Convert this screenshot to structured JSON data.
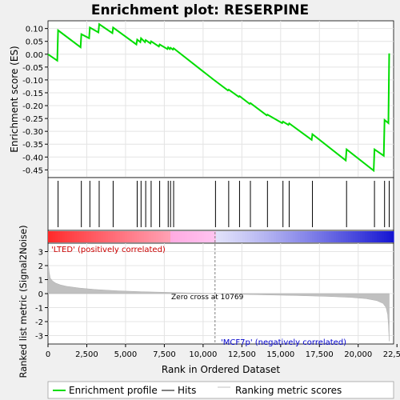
{
  "title": "Enrichment plot: RESERPINE",
  "legend": {
    "items": [
      {
        "label": "Enrichment profile",
        "color": "#00dd00"
      },
      {
        "label": "Hits",
        "color": "#000000"
      },
      {
        "label": "Ranking metric scores",
        "color": "#c0c0c0"
      }
    ]
  },
  "annotations": {
    "positive_label": "'LTED' (positively correlated)",
    "negative_label": "'MCF7p' (negatively correlated)",
    "zero_cross": "Zero cross at 10769",
    "positive_color": "#cc0000",
    "negative_color": "#0000cc"
  },
  "chart_data": [
    {
      "type": "line",
      "name": "enrichment-profile",
      "ylabel": "Enrichment score (ES)",
      "ylim": [
        -0.48,
        0.13
      ],
      "yticks": [
        0.1,
        0.05,
        0.0,
        -0.05,
        -0.1,
        -0.15,
        -0.2,
        -0.25,
        -0.3,
        -0.35,
        -0.4,
        -0.45
      ],
      "ytick_labels": [
        "0.10",
        "0.05",
        "0.00",
        "-0.05",
        "-0.10",
        "-0.15",
        "-0.20",
        "-0.25",
        "-0.30",
        "-0.35",
        "-0.40",
        "-0.45"
      ],
      "xlim": [
        0,
        22283
      ],
      "grid": true,
      "line_color": "#00dd00",
      "x": [
        0,
        600,
        650,
        2100,
        2150,
        2650,
        2700,
        3250,
        3300,
        4150,
        4200,
        5700,
        5750,
        5950,
        6000,
        6250,
        6300,
        6600,
        6650,
        7150,
        7200,
        7700,
        7750,
        7850,
        7900,
        8050,
        8100,
        10700,
        11600,
        11650,
        12300,
        12350,
        13000,
        13050,
        14100,
        14150,
        15100,
        15150,
        15500,
        15550,
        17000,
        17050,
        19200,
        19250,
        21000,
        21050,
        21650,
        21700,
        21950,
        22000
      ],
      "y": [
        0.0,
        -0.025,
        0.093,
        0.027,
        0.078,
        0.062,
        0.104,
        0.085,
        0.117,
        0.082,
        0.104,
        0.038,
        0.057,
        0.047,
        0.062,
        0.047,
        0.055,
        0.042,
        0.05,
        0.03,
        0.038,
        0.02,
        0.027,
        0.02,
        0.025,
        0.018,
        0.023,
        -0.1,
        -0.141,
        -0.138,
        -0.166,
        -0.163,
        -0.193,
        -0.19,
        -0.238,
        -0.235,
        -0.268,
        -0.262,
        -0.275,
        -0.269,
        -0.333,
        -0.311,
        -0.413,
        -0.37,
        -0.453,
        -0.37,
        -0.395,
        -0.256,
        -0.268,
        0.003
      ]
    },
    {
      "type": "scatter",
      "name": "hits",
      "x": [
        650,
        2150,
        2700,
        3300,
        4200,
        5750,
        6000,
        6300,
        6650,
        7200,
        7750,
        7900,
        8100,
        10800,
        11650,
        12350,
        13050,
        14150,
        15150,
        15550,
        17050,
        19250,
        21050,
        21700,
        22000
      ]
    },
    {
      "type": "area",
      "name": "ranking-metric",
      "ylabel": "Ranked list metric (Signal2Noise)",
      "xlabel": "Rank in Ordered Dataset",
      "ylim": [
        -3.6,
        3.6
      ],
      "yticks": [
        3,
        2,
        1,
        0,
        -1,
        -2,
        -3
      ],
      "ytick_labels": [
        "3",
        "2",
        "1",
        "0",
        "-1",
        "-2",
        "-3"
      ],
      "xlim": [
        0,
        22283
      ],
      "xticks": [
        0,
        2500,
        5000,
        7500,
        10000,
        12500,
        15000,
        17500,
        20000,
        22500
      ],
      "xtick_labels": [
        "0",
        "2,500",
        "5,000",
        "7,500",
        "10,000",
        "12,500",
        "15,000",
        "17,500",
        "20,000",
        "22,500"
      ],
      "zero_cross": 10769,
      "fill_color": "#c0c0c0",
      "x": [
        0,
        30,
        80,
        150,
        300,
        500,
        800,
        1200,
        2000,
        3000,
        4500,
        6000,
        8000,
        10000,
        10769,
        12000,
        14000,
        16000,
        18000,
        19500,
        20500,
        21200,
        21600,
        21800,
        21900,
        21950,
        22000
      ],
      "y": [
        3.0,
        2.0,
        1.5,
        1.1,
        0.9,
        0.75,
        0.62,
        0.52,
        0.4,
        0.3,
        0.2,
        0.14,
        0.08,
        0.02,
        0.0,
        -0.04,
        -0.09,
        -0.14,
        -0.2,
        -0.27,
        -0.36,
        -0.5,
        -0.7,
        -1.0,
        -1.5,
        -2.2,
        -3.4
      ]
    }
  ]
}
